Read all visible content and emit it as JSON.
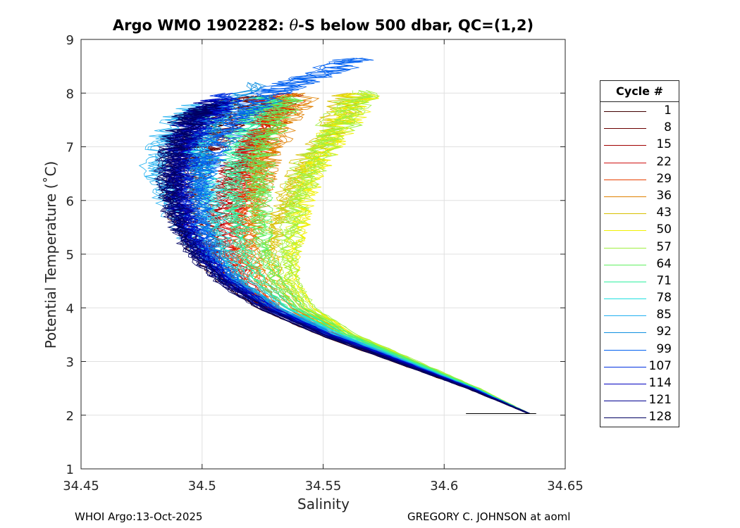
{
  "title_prefix": "Argo WMO 1902282: ",
  "title_theta": "θ",
  "title_suffix": "-S below 500 dbar,  QC=(1,2)",
  "footer_left": "WHOI Argo:13-Oct-2025",
  "footer_right": "GREGORY C. JOHNSON at aoml",
  "legend": {
    "title": "Cycle #",
    "items": [
      {
        "label": "1",
        "color": "#400000"
      },
      {
        "label": "8",
        "color": "#6a0000"
      },
      {
        "label": "15",
        "color": "#a00000"
      },
      {
        "label": "22",
        "color": "#d01010"
      },
      {
        "label": "29",
        "color": "#e84000"
      },
      {
        "label": "36",
        "color": "#e08000"
      },
      {
        "label": "43",
        "color": "#d8c000"
      },
      {
        "label": "50",
        "color": "#f0f000"
      },
      {
        "label": "57",
        "color": "#a0f040"
      },
      {
        "label": "64",
        "color": "#60f060"
      },
      {
        "label": "71",
        "color": "#30f0a0"
      },
      {
        "label": "78",
        "color": "#20e0e0"
      },
      {
        "label": "85",
        "color": "#20b0f0"
      },
      {
        "label": "92",
        "color": "#1090e0"
      },
      {
        "label": "99",
        "color": "#0060f0"
      },
      {
        "label": "107",
        "color": "#0030e0"
      },
      {
        "label": "114",
        "color": "#0000c0"
      },
      {
        "label": "121",
        "color": "#000090"
      },
      {
        "label": "128",
        "color": "#000060"
      }
    ]
  },
  "chart_data": {
    "type": "line",
    "title": "Argo WMO 1902282: θ-S below 500 dbar,  QC=(1,2)",
    "xlabel": "Salinity",
    "ylabel": "Potential Temperature (˚C)",
    "xlim": [
      34.45,
      34.65
    ],
    "ylim": [
      1,
      9
    ],
    "xticks": [
      34.45,
      34.5,
      34.55,
      34.6,
      34.65
    ],
    "xtick_labels": [
      "34.45",
      "34.5",
      "34.55",
      "34.6",
      "34.65"
    ],
    "yticks": [
      1,
      2,
      3,
      4,
      5,
      6,
      7,
      8,
      9
    ],
    "ytick_labels": [
      "1",
      "2",
      "3",
      "4",
      "5",
      "6",
      "7",
      "8",
      "9"
    ],
    "grid": true,
    "legend_position": "right outside",
    "series": [
      {
        "name": "1",
        "x": [
          34.635,
          34.61,
          34.58,
          34.55,
          34.525,
          34.51,
          34.5,
          34.493,
          34.49,
          34.49,
          34.495,
          34.505,
          34.515
        ],
        "y": [
          2.03,
          2.5,
          3.0,
          3.5,
          4.0,
          4.5,
          5.0,
          5.5,
          6.0,
          6.5,
          7.0,
          7.5,
          7.9
        ]
      },
      {
        "name": "8",
        "x": [
          34.635,
          34.61,
          34.58,
          34.551,
          34.526,
          34.511,
          34.502,
          34.496,
          34.495,
          34.497,
          34.503,
          34.513,
          34.522
        ],
        "y": [
          2.03,
          2.5,
          3.0,
          3.5,
          4.0,
          4.5,
          5.0,
          5.5,
          6.0,
          6.5,
          7.0,
          7.5,
          7.95
        ]
      },
      {
        "name": "15",
        "x": [
          34.635,
          34.611,
          34.581,
          34.552,
          34.528,
          34.514,
          34.507,
          34.505,
          34.507,
          34.512,
          34.52,
          34.528,
          34.535
        ],
        "y": [
          2.03,
          2.5,
          3.0,
          3.5,
          4.0,
          4.5,
          5.0,
          5.5,
          6.0,
          6.5,
          7.0,
          7.5,
          8.0
        ]
      },
      {
        "name": "22",
        "x": [
          34.635,
          34.611,
          34.582,
          34.553,
          34.53,
          34.518,
          34.513,
          34.513,
          34.516,
          34.519,
          34.522,
          34.527,
          34.53
        ],
        "y": [
          2.03,
          2.5,
          3.0,
          3.5,
          4.0,
          4.5,
          5.0,
          5.5,
          6.0,
          6.5,
          7.0,
          7.5,
          7.95
        ]
      },
      {
        "name": "29",
        "x": [
          34.635,
          34.612,
          34.583,
          34.554,
          34.532,
          34.52,
          34.516,
          34.516,
          34.518,
          34.52,
          34.523,
          34.528,
          34.535
        ],
        "y": [
          2.03,
          2.5,
          3.0,
          3.5,
          4.0,
          4.5,
          5.0,
          5.5,
          6.0,
          6.5,
          7.0,
          7.5,
          8.0
        ]
      },
      {
        "name": "36",
        "x": [
          34.635,
          34.612,
          34.584,
          34.556,
          34.535,
          34.524,
          34.52,
          34.52,
          34.522,
          34.524,
          34.527,
          34.533,
          34.54
        ],
        "y": [
          2.03,
          2.5,
          3.0,
          3.5,
          4.0,
          4.5,
          5.0,
          5.5,
          6.0,
          6.5,
          7.0,
          7.5,
          8.0
        ]
      },
      {
        "name": "43",
        "x": [
          34.635,
          34.613,
          34.586,
          34.559,
          34.54,
          34.531,
          34.528,
          34.53,
          34.534,
          34.54,
          34.548,
          34.556,
          34.562
        ],
        "y": [
          2.03,
          2.5,
          3.0,
          3.5,
          4.0,
          4.5,
          5.0,
          5.5,
          6.0,
          6.5,
          7.0,
          7.5,
          8.0
        ]
      },
      {
        "name": "50",
        "x": [
          34.635,
          34.614,
          34.588,
          34.562,
          34.545,
          34.538,
          34.538,
          34.54,
          34.542,
          34.546,
          34.552,
          34.56,
          34.566
        ],
        "y": [
          2.03,
          2.5,
          3.0,
          3.5,
          4.0,
          4.5,
          5.0,
          5.5,
          6.0,
          6.5,
          7.0,
          7.5,
          8.0
        ]
      },
      {
        "name": "57",
        "x": [
          34.635,
          34.614,
          34.588,
          34.562,
          34.544,
          34.536,
          34.535,
          34.536,
          34.538,
          34.543,
          34.55,
          34.558,
          34.565
        ],
        "y": [
          2.03,
          2.5,
          3.0,
          3.5,
          4.0,
          4.5,
          5.0,
          5.5,
          6.0,
          6.5,
          7.0,
          7.5,
          8.05
        ]
      },
      {
        "name": "64",
        "x": [
          34.635,
          34.613,
          34.587,
          34.56,
          34.54,
          34.53,
          34.526,
          34.524,
          34.523,
          34.523,
          34.524,
          34.528,
          34.535
        ],
        "y": [
          2.03,
          2.5,
          3.0,
          3.5,
          4.0,
          4.5,
          5.0,
          5.5,
          6.0,
          6.5,
          7.0,
          7.5,
          7.95
        ]
      },
      {
        "name": "71",
        "x": [
          34.635,
          34.613,
          34.586,
          34.559,
          34.537,
          34.524,
          34.518,
          34.515,
          34.514,
          34.514,
          34.515,
          34.52,
          34.528
        ],
        "y": [
          2.03,
          2.5,
          3.0,
          3.5,
          4.0,
          4.5,
          5.0,
          5.5,
          6.0,
          6.5,
          7.0,
          7.5,
          7.95
        ]
      },
      {
        "name": "78",
        "x": [
          34.635,
          34.612,
          34.585,
          34.557,
          34.534,
          34.519,
          34.511,
          34.507,
          34.505,
          34.503,
          34.5,
          34.503,
          34.51
        ],
        "y": [
          2.03,
          2.5,
          3.0,
          3.5,
          4.0,
          4.5,
          5.0,
          5.5,
          6.0,
          6.5,
          7.0,
          7.5,
          7.9
        ]
      },
      {
        "name": "85",
        "x": [
          34.635,
          34.612,
          34.584,
          34.555,
          34.53,
          34.512,
          34.5,
          34.492,
          34.486,
          34.481,
          34.483,
          34.49,
          34.5
        ],
        "y": [
          2.03,
          2.5,
          3.0,
          3.5,
          4.0,
          4.5,
          5.0,
          5.5,
          6.0,
          6.5,
          7.0,
          7.5,
          7.8
        ]
      },
      {
        "name": "92",
        "x": [
          34.635,
          34.612,
          34.583,
          34.554,
          34.53,
          34.514,
          34.505,
          34.5,
          34.497,
          34.496,
          34.498,
          34.505,
          34.52
        ],
        "y": [
          2.03,
          2.5,
          3.0,
          3.5,
          4.0,
          4.5,
          5.0,
          5.5,
          6.0,
          6.5,
          7.0,
          7.5,
          8.2
        ]
      },
      {
        "name": "99",
        "x": [
          34.635,
          34.612,
          34.583,
          34.553,
          34.529,
          34.513,
          34.504,
          34.5,
          34.499,
          34.501,
          34.506,
          34.515,
          34.528,
          34.545,
          34.565
        ],
        "y": [
          2.03,
          2.5,
          3.0,
          3.5,
          4.0,
          4.5,
          5.0,
          5.5,
          6.0,
          6.5,
          7.0,
          7.5,
          8.0,
          8.3,
          8.65
        ]
      },
      {
        "name": "107",
        "x": [
          34.635,
          34.611,
          34.582,
          34.553,
          34.528,
          34.511,
          34.501,
          34.495,
          34.492,
          34.492,
          34.495,
          34.503,
          34.512
        ],
        "y": [
          2.03,
          2.5,
          3.0,
          3.5,
          4.0,
          4.5,
          5.0,
          5.5,
          6.0,
          6.5,
          7.0,
          7.5,
          8.0
        ]
      },
      {
        "name": "114",
        "x": [
          34.635,
          34.611,
          34.582,
          34.552,
          34.527,
          34.51,
          34.499,
          34.493,
          34.49,
          34.489,
          34.491,
          34.498,
          34.508
        ],
        "y": [
          2.03,
          2.5,
          3.0,
          3.5,
          4.0,
          4.5,
          5.0,
          5.5,
          6.0,
          6.5,
          7.0,
          7.5,
          7.9
        ]
      },
      {
        "name": "121",
        "x": [
          34.635,
          34.611,
          34.581,
          34.551,
          34.526,
          34.509,
          34.498,
          34.492,
          34.489,
          34.488,
          34.49,
          34.496,
          34.505
        ],
        "y": [
          2.03,
          2.5,
          3.0,
          3.5,
          4.0,
          4.5,
          5.0,
          5.5,
          6.0,
          6.5,
          7.0,
          7.5,
          7.85
        ]
      },
      {
        "name": "128",
        "x": [
          34.635,
          34.61,
          34.58,
          34.55,
          34.525,
          34.508,
          34.497,
          34.491,
          34.488,
          34.487,
          34.489,
          34.495,
          34.503
        ],
        "y": [
          2.03,
          2.5,
          3.0,
          3.5,
          4.0,
          4.5,
          5.0,
          5.5,
          6.0,
          6.5,
          7.0,
          7.5,
          7.8
        ]
      }
    ]
  }
}
